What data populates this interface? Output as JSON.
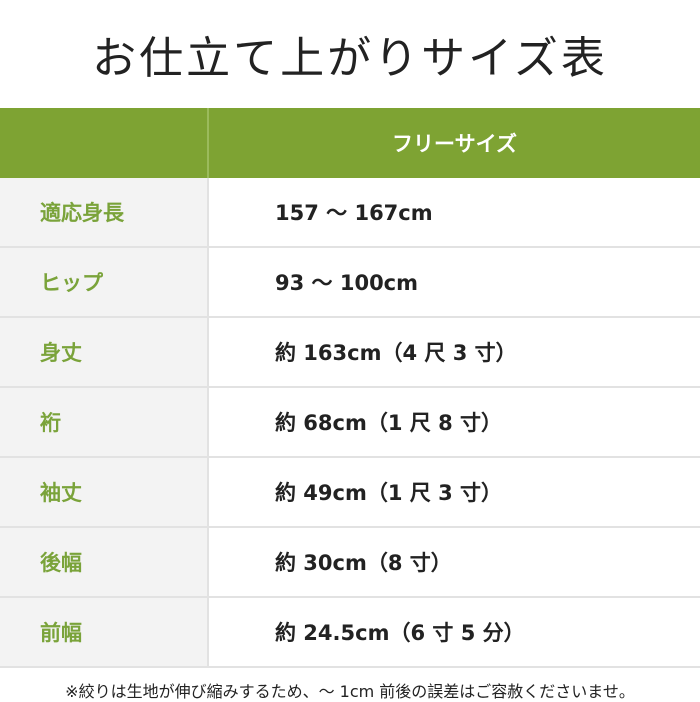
{
  "title": "お仕立て上がりサイズ表",
  "table": {
    "header": "フリーサイズ",
    "rows": [
      [
        "適応身長",
        "157 〜 167cm"
      ],
      [
        "ヒップ",
        "93 〜 100cm"
      ],
      [
        "身丈",
        "約 163cm（4 尺 3 寸）"
      ],
      [
        "裄",
        "約 68cm（1 尺 8 寸）"
      ],
      [
        "袖丈",
        "約 49cm（1 尺 3 寸）"
      ],
      [
        "後幅",
        "約 30cm（8 寸）"
      ],
      [
        "前幅",
        "約 24.5cm（6 寸 5 分）"
      ]
    ]
  },
  "note": "※絞りは生地が伸び縮みするため、〜 1cm 前後の誤差はご容赦くださいませ。"
}
